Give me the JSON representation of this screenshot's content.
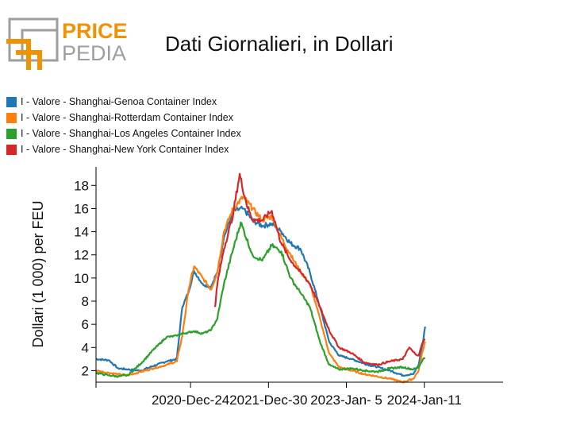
{
  "header": {
    "logo_top": "PRICE",
    "logo_bottom": "PEDIA",
    "title": "Dati Giornalieri, in Dollari"
  },
  "colors": {
    "blue": "#1f77b4",
    "orange": "#ff7f0e",
    "green": "#2ca02c",
    "red": "#d62728",
    "logo_orange": "#f39200",
    "logo_gray": "#9e9e9e"
  },
  "chart_data": {
    "type": "line",
    "title": "Dati Giornalieri, in Dollari",
    "ylabel": "Dollari (1 000) per FEU",
    "xlabel": "",
    "ylim": [
      1,
      19.6
    ],
    "xlim": [
      "2019-10-01",
      "2025-01-20"
    ],
    "yticks": [
      2,
      4,
      6,
      8,
      10,
      12,
      14,
      16,
      18
    ],
    "xticks": [
      "2020-Dec-24",
      "2021-Dec-30",
      "2023-Jan- 5",
      "2024-Jan-11"
    ],
    "legend_position": "top-left",
    "grid": false,
    "series": [
      {
        "name": "I - Valore - Shanghai-Genoa Container Index",
        "color": "#1f77b4",
        "points": [
          [
            "2019-10-01",
            3.0
          ],
          [
            "2019-12-01",
            2.9
          ],
          [
            "2020-01-15",
            2.2
          ],
          [
            "2020-03-01",
            2.1
          ],
          [
            "2020-05-01",
            2.0
          ],
          [
            "2020-07-01",
            2.4
          ],
          [
            "2020-09-01",
            2.8
          ],
          [
            "2020-10-20",
            3.0
          ],
          [
            "2020-11-15",
            7.5
          ],
          [
            "2020-12-15",
            8.8
          ],
          [
            "2021-01-10",
            10.6
          ],
          [
            "2021-02-20",
            9.5
          ],
          [
            "2021-04-01",
            9.2
          ],
          [
            "2021-05-01",
            10.5
          ],
          [
            "2021-06-01",
            13.5
          ],
          [
            "2021-07-15",
            15.8
          ],
          [
            "2021-09-01",
            16.0
          ],
          [
            "2021-10-15",
            15.0
          ],
          [
            "2021-12-01",
            14.5
          ],
          [
            "2022-01-15",
            14.7
          ],
          [
            "2022-03-01",
            14.0
          ],
          [
            "2022-04-15",
            13.0
          ],
          [
            "2022-06-01",
            12.5
          ],
          [
            "2022-07-15",
            10.5
          ],
          [
            "2022-09-01",
            7.5
          ],
          [
            "2022-10-15",
            4.5
          ],
          [
            "2022-12-01",
            3.3
          ],
          [
            "2023-02-01",
            3.0
          ],
          [
            "2023-04-01",
            2.6
          ],
          [
            "2023-06-01",
            2.3
          ],
          [
            "2023-08-01",
            2.0
          ],
          [
            "2023-10-01",
            1.6
          ],
          [
            "2023-11-20",
            1.7
          ],
          [
            "2023-12-15",
            2.5
          ],
          [
            "2024-01-05",
            4.5
          ],
          [
            "2024-01-15",
            5.8
          ]
        ]
      },
      {
        "name": "I - Valore - Shanghai-Rotterdam Container Index",
        "color": "#ff7f0e",
        "points": [
          [
            "2019-10-01",
            2.0
          ],
          [
            "2019-12-01",
            1.8
          ],
          [
            "2020-01-15",
            1.7
          ],
          [
            "2020-03-01",
            1.6
          ],
          [
            "2020-05-01",
            1.9
          ],
          [
            "2020-07-01",
            2.2
          ],
          [
            "2020-09-01",
            2.5
          ],
          [
            "2020-10-20",
            2.8
          ],
          [
            "2020-11-15",
            5.0
          ],
          [
            "2020-12-15",
            9.0
          ],
          [
            "2021-01-10",
            11.0
          ],
          [
            "2021-02-20",
            10.0
          ],
          [
            "2021-04-01",
            9.0
          ],
          [
            "2021-05-01",
            10.5
          ],
          [
            "2021-06-01",
            14.0
          ],
          [
            "2021-07-15",
            16.0
          ],
          [
            "2021-09-01",
            17.0
          ],
          [
            "2021-10-15",
            16.0
          ],
          [
            "2021-12-01",
            15.0
          ],
          [
            "2022-01-15",
            15.3
          ],
          [
            "2022-03-01",
            13.5
          ],
          [
            "2022-04-15",
            12.0
          ],
          [
            "2022-06-01",
            10.5
          ],
          [
            "2022-07-15",
            9.5
          ],
          [
            "2022-09-01",
            6.5
          ],
          [
            "2022-10-15",
            3.5
          ],
          [
            "2022-12-01",
            2.3
          ],
          [
            "2023-02-01",
            2.0
          ],
          [
            "2023-04-01",
            1.7
          ],
          [
            "2023-06-01",
            1.5
          ],
          [
            "2023-08-01",
            1.3
          ],
          [
            "2023-10-01",
            1.0
          ],
          [
            "2023-11-20",
            1.3
          ],
          [
            "2023-12-15",
            2.0
          ],
          [
            "2024-01-05",
            3.8
          ],
          [
            "2024-01-15",
            4.5
          ]
        ]
      },
      {
        "name": "I - Valore - Shanghai-Los Angeles Container Index",
        "color": "#2ca02c",
        "points": [
          [
            "2019-10-01",
            1.8
          ],
          [
            "2019-12-01",
            1.6
          ],
          [
            "2020-01-15",
            1.5
          ],
          [
            "2020-03-01",
            1.6
          ],
          [
            "2020-05-01",
            2.6
          ],
          [
            "2020-07-01",
            3.8
          ],
          [
            "2020-09-01",
            4.9
          ],
          [
            "2020-10-20",
            5.0
          ],
          [
            "2020-11-15",
            5.2
          ],
          [
            "2020-12-15",
            5.3
          ],
          [
            "2021-01-10",
            5.4
          ],
          [
            "2021-02-20",
            5.2
          ],
          [
            "2021-04-01",
            5.5
          ],
          [
            "2021-05-01",
            6.5
          ],
          [
            "2021-06-01",
            9.5
          ],
          [
            "2021-07-15",
            12.5
          ],
          [
            "2021-08-20",
            14.8
          ],
          [
            "2021-10-15",
            12.0
          ],
          [
            "2021-12-01",
            11.5
          ],
          [
            "2022-01-15",
            12.8
          ],
          [
            "2022-03-01",
            12.3
          ],
          [
            "2022-04-15",
            10.0
          ],
          [
            "2022-06-01",
            8.7
          ],
          [
            "2022-07-15",
            7.5
          ],
          [
            "2022-09-01",
            4.5
          ],
          [
            "2022-10-15",
            2.5
          ],
          [
            "2022-12-01",
            2.1
          ],
          [
            "2023-02-01",
            2.2
          ],
          [
            "2023-04-01",
            2.0
          ],
          [
            "2023-06-01",
            1.9
          ],
          [
            "2023-08-01",
            2.2
          ],
          [
            "2023-10-01",
            2.3
          ],
          [
            "2023-11-20",
            2.1
          ],
          [
            "2023-12-15",
            2.3
          ],
          [
            "2024-01-05",
            3.0
          ],
          [
            "2024-01-15",
            3.1
          ]
        ]
      },
      {
        "name": "I - Valore - Shanghai-New York Container Index",
        "color": "#d62728",
        "points": [
          [
            "2021-04-20",
            7.5
          ],
          [
            "2021-05-01",
            9.5
          ],
          [
            "2021-06-01",
            12.5
          ],
          [
            "2021-07-15",
            15.5
          ],
          [
            "2021-08-15",
            19.0
          ],
          [
            "2021-09-15",
            16.5
          ],
          [
            "2021-10-15",
            15.0
          ],
          [
            "2021-12-01",
            15.0
          ],
          [
            "2022-01-15",
            15.8
          ],
          [
            "2022-03-01",
            13.0
          ],
          [
            "2022-04-15",
            11.5
          ],
          [
            "2022-06-01",
            10.5
          ],
          [
            "2022-07-15",
            9.5
          ],
          [
            "2022-09-01",
            7.5
          ],
          [
            "2022-10-15",
            5.5
          ],
          [
            "2022-12-01",
            4.0
          ],
          [
            "2023-02-01",
            3.5
          ],
          [
            "2023-04-01",
            2.7
          ],
          [
            "2023-06-01",
            2.5
          ],
          [
            "2023-08-01",
            2.8
          ],
          [
            "2023-10-01",
            3.0
          ],
          [
            "2023-11-01",
            4.0
          ],
          [
            "2023-11-20",
            3.6
          ],
          [
            "2023-12-15",
            3.3
          ],
          [
            "2024-01-05",
            4.5
          ],
          [
            "2024-01-15",
            4.7
          ]
        ]
      }
    ]
  }
}
